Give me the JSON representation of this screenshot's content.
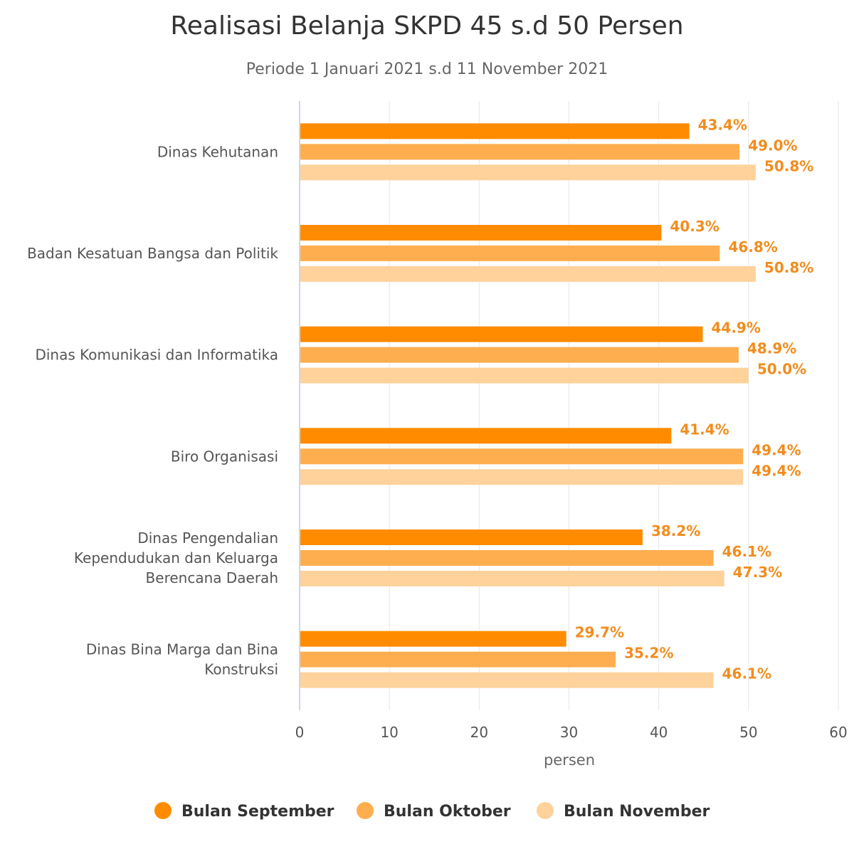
{
  "chart_data": {
    "type": "bar",
    "orientation": "horizontal",
    "title": "Realisasi Belanja SKPD 45 s.d 50 Persen",
    "subtitle": "Periode 1 Januari 2021 s.d 11 November 2021",
    "xlabel": "persen",
    "ylabel": "",
    "xlim": [
      0,
      60
    ],
    "ticks": [
      0,
      10,
      20,
      30,
      40,
      50,
      60
    ],
    "grid": true,
    "legend_position": "bottom",
    "categories": [
      [
        "Dinas Kehutanan"
      ],
      [
        "Badan Kesatuan Bangsa dan Politik"
      ],
      [
        "Dinas Komunikasi dan Informatika"
      ],
      [
        "Biro Organisasi"
      ],
      [
        "Dinas Pengendalian",
        "Kependudukan dan Keluarga",
        "Berencana Daerah"
      ],
      [
        "Dinas Bina Marga dan Bina",
        "Konstruksi"
      ]
    ],
    "series": [
      {
        "name": "Bulan September",
        "color": "#FF8C00",
        "values": [
          43.4,
          40.3,
          44.9,
          41.4,
          38.2,
          29.7
        ],
        "labels": [
          "43.4%",
          "40.3%",
          "44.9%",
          "41.4%",
          "38.2%",
          "29.7%"
        ]
      },
      {
        "name": "Bulan Oktober",
        "color": "#FFAE4F",
        "values": [
          49.0,
          46.8,
          48.9,
          49.4,
          46.1,
          35.2
        ],
        "labels": [
          "49.0%",
          "46.8%",
          "48.9%",
          "49.4%",
          "46.1%",
          "35.2%"
        ]
      },
      {
        "name": "Bulan November",
        "color": "#FFD29B",
        "values": [
          50.8,
          50.8,
          50.0,
          49.4,
          47.3,
          46.1
        ],
        "labels": [
          "50.8%",
          "50.8%",
          "50.0%",
          "49.4%",
          "47.3%",
          "46.1%"
        ]
      }
    ]
  }
}
